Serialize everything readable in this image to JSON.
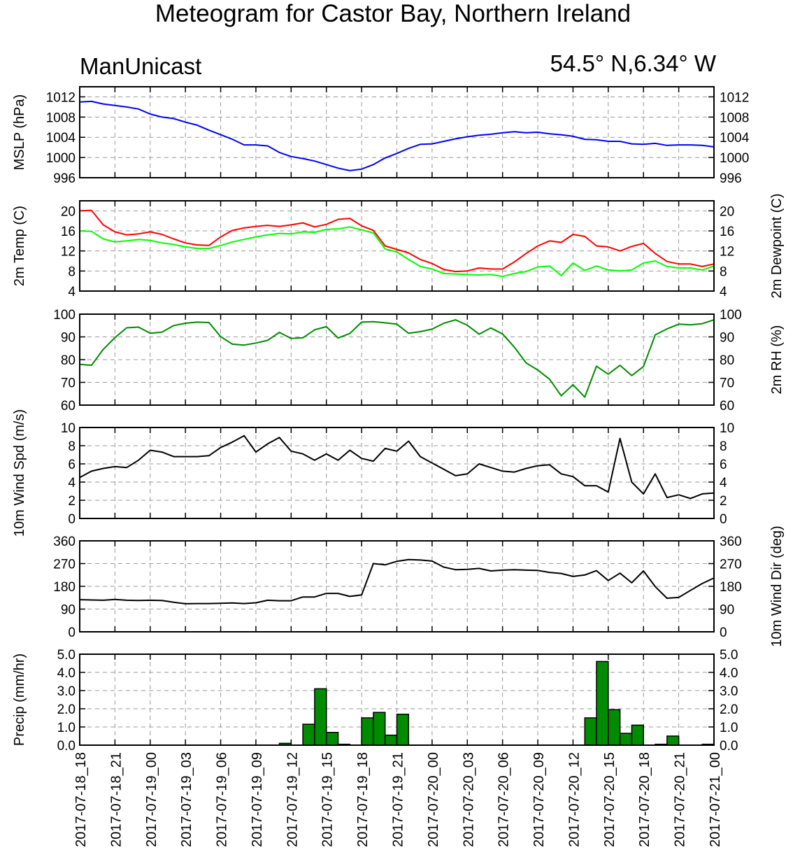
{
  "header": {
    "title": "Meteogram for Castor Bay, Northern Ireland",
    "left_string": "ManUnicast",
    "right_string": "54.5° N,6.34° W"
  },
  "x_axis": {
    "tick_labels": [
      "2017-07-18_18",
      "2017-07-18_21",
      "2017-07-19_00",
      "2017-07-19_03",
      "2017-07-19_06",
      "2017-07-19_09",
      "2017-07-19_12",
      "2017-07-19_15",
      "2017-07-19_18",
      "2017-07-19_21",
      "2017-07-20_00",
      "2017-07-20_03",
      "2017-07-20_06",
      "2017-07-20_09",
      "2017-07-20_12",
      "2017-07-20_15",
      "2017-07-20_18",
      "2017-07-20_21",
      "2017-07-21_00"
    ],
    "range_hours": [
      0,
      54
    ],
    "tick_every_hours": 3
  },
  "colors": {
    "mslp": "#0000ff",
    "temp": "#ff0000",
    "dewpoint": "#00ff00",
    "rh": "#008c00",
    "wind": "#000000",
    "precip_fill": "#008c00",
    "grid": "#999999"
  },
  "chart_data": [
    {
      "type": "line",
      "ylabel": "MSLP (hPa)",
      "yticks": [
        "996",
        "1000",
        "1004",
        "1008",
        "1012"
      ],
      "ylim": [
        996,
        1014
      ],
      "grid": true,
      "series": [
        {
          "color_key": "mslp",
          "x": [
            0,
            1,
            2,
            3,
            4,
            5,
            6,
            7,
            8,
            9,
            10,
            11,
            12,
            13,
            14,
            15,
            16,
            17,
            18,
            19,
            20,
            21,
            22,
            23,
            24,
            25,
            26,
            27,
            28,
            29,
            30,
            31,
            32,
            33,
            34,
            35,
            36,
            37,
            38,
            39,
            40,
            41,
            42,
            43,
            44,
            45,
            46,
            47,
            48,
            49,
            50,
            51,
            52,
            53,
            54
          ],
          "values": [
            1011.0,
            1011.1,
            1010.6,
            1010.3,
            1010.0,
            1009.6,
            1008.6,
            1008.0,
            1007.7,
            1007.0,
            1006.4,
            1005.4,
            1004.5,
            1003.6,
            1002.5,
            1002.5,
            1002.3,
            1001.0,
            1000.2,
            999.8,
            999.3,
            998.6,
            997.9,
            997.4,
            997.7,
            998.6,
            999.9,
            1000.8,
            1001.8,
            1002.6,
            1002.7,
            1003.2,
            1003.7,
            1004.1,
            1004.4,
            1004.6,
            1004.9,
            1005.1,
            1004.9,
            1005.0,
            1004.7,
            1004.5,
            1004.2,
            1003.6,
            1003.5,
            1003.2,
            1003.2,
            1002.7,
            1002.6,
            1002.8,
            1002.4,
            1002.5,
            1002.5,
            1002.4,
            1002.1
          ]
        }
      ]
    },
    {
      "type": "line",
      "ylabel": "2m Temp (C)",
      "ylabel_right": "2m Dewpoint (C)",
      "yticks": [
        "4",
        "8",
        "12",
        "16",
        "20"
      ],
      "ylim": [
        4,
        22
      ],
      "grid": true,
      "series": [
        {
          "color_key": "temp",
          "x": [
            0,
            1,
            2,
            3,
            4,
            5,
            6,
            7,
            8,
            9,
            10,
            11,
            12,
            13,
            14,
            15,
            16,
            17,
            18,
            19,
            20,
            21,
            22,
            23,
            24,
            25,
            26,
            27,
            28,
            29,
            30,
            31,
            32,
            33,
            34,
            35,
            36,
            37,
            38,
            39,
            40,
            41,
            42,
            43,
            44,
            45,
            46,
            47,
            48,
            49,
            50,
            51,
            52,
            53,
            54
          ],
          "values": [
            20.0,
            20.1,
            17.2,
            15.8,
            15.2,
            15.4,
            15.8,
            15.3,
            14.4,
            13.6,
            13.2,
            13.1,
            14.8,
            16.1,
            16.6,
            16.9,
            17.1,
            16.9,
            17.2,
            17.6,
            16.8,
            17.3,
            18.3,
            18.5,
            17.0,
            16.1,
            13.0,
            12.3,
            11.6,
            10.3,
            9.5,
            8.3,
            7.9,
            8.0,
            8.6,
            8.4,
            8.4,
            9.8,
            11.5,
            13.0,
            14.0,
            13.7,
            15.3,
            14.9,
            13.0,
            12.8,
            12.0,
            12.9,
            13.5,
            11.5,
            9.9,
            9.4,
            9.4,
            8.9,
            9.4
          ]
        },
        {
          "color_key": "dewpoint",
          "x": [
            0,
            1,
            2,
            3,
            4,
            5,
            6,
            7,
            8,
            9,
            10,
            11,
            12,
            13,
            14,
            15,
            16,
            17,
            18,
            19,
            20,
            21,
            22,
            23,
            24,
            25,
            26,
            27,
            28,
            29,
            30,
            31,
            32,
            33,
            34,
            35,
            36,
            37,
            38,
            39,
            40,
            41,
            42,
            43,
            44,
            45,
            46,
            47,
            48,
            49,
            50,
            51,
            52,
            53,
            54
          ],
          "values": [
            16.0,
            15.9,
            14.4,
            13.8,
            14.0,
            14.3,
            14.1,
            13.6,
            13.3,
            12.8,
            12.5,
            12.5,
            13.1,
            13.8,
            14.3,
            14.8,
            15.2,
            15.5,
            15.4,
            15.8,
            15.7,
            16.3,
            16.4,
            16.8,
            16.2,
            15.6,
            12.4,
            11.8,
            10.3,
            8.9,
            8.4,
            7.5,
            7.4,
            7.3,
            7.2,
            7.3,
            6.9,
            7.5,
            7.9,
            8.8,
            9.0,
            7.1,
            9.6,
            8.1,
            9.0,
            8.2,
            8.0,
            8.2,
            9.6,
            10.0,
            8.9,
            8.6,
            8.6,
            8.2,
            9.0
          ]
        }
      ]
    },
    {
      "type": "line",
      "ylabel_right": "2m RH (%)",
      "yticks": [
        "60",
        "70",
        "80",
        "90",
        "100"
      ],
      "ylim": [
        60,
        100
      ],
      "grid": true,
      "series": [
        {
          "color_key": "rh",
          "x": [
            0,
            1,
            2,
            3,
            4,
            5,
            6,
            7,
            8,
            9,
            10,
            11,
            12,
            13,
            14,
            15,
            16,
            17,
            18,
            19,
            20,
            21,
            22,
            23,
            24,
            25,
            26,
            27,
            28,
            29,
            30,
            31,
            32,
            33,
            34,
            35,
            36,
            37,
            38,
            39,
            40,
            41,
            42,
            43,
            44,
            45,
            46,
            47,
            48,
            49,
            50,
            51,
            52,
            53,
            54
          ],
          "values": [
            77.9,
            77.5,
            84.5,
            89.7,
            94.0,
            94.3,
            91.6,
            92.1,
            95.0,
            96.0,
            96.5,
            96.3,
            90.1,
            86.8,
            86.4,
            87.3,
            88.5,
            92.0,
            89.3,
            89.6,
            93.1,
            94.5,
            89.5,
            91.5,
            96.5,
            96.7,
            96.2,
            95.6,
            91.6,
            92.3,
            93.4,
            96.0,
            97.5,
            95.1,
            91.2,
            93.9,
            91.3,
            85.5,
            78.6,
            75.4,
            71.4,
            64.1,
            69.0,
            63.5,
            77.1,
            73.6,
            77.5,
            73.0,
            77.0,
            90.9,
            93.5,
            95.6,
            95.3,
            95.8,
            97.5
          ]
        }
      ]
    },
    {
      "type": "line",
      "ylabel": "10m Wind Spd (m/s)",
      "yticks": [
        "0",
        "2",
        "4",
        "6",
        "8",
        "10"
      ],
      "ylim": [
        0,
        10
      ],
      "grid": true,
      "series": [
        {
          "color_key": "wind",
          "x": [
            0,
            1,
            2,
            3,
            4,
            5,
            6,
            7,
            8,
            9,
            10,
            11,
            12,
            13,
            14,
            15,
            16,
            17,
            18,
            19,
            20,
            21,
            22,
            23,
            24,
            25,
            26,
            27,
            28,
            29,
            30,
            31,
            32,
            33,
            34,
            35,
            36,
            37,
            38,
            39,
            40,
            41,
            42,
            43,
            44,
            45,
            46,
            47,
            48,
            49,
            50,
            51,
            52,
            53,
            54
          ],
          "values": [
            4.5,
            5.2,
            5.5,
            5.7,
            5.6,
            6.4,
            7.5,
            7.3,
            6.8,
            6.8,
            6.8,
            6.9,
            7.8,
            8.4,
            9.1,
            7.3,
            8.2,
            8.9,
            7.4,
            7.1,
            6.4,
            7.1,
            6.4,
            7.5,
            6.6,
            6.3,
            7.7,
            7.4,
            8.5,
            6.8,
            6.1,
            5.4,
            4.7,
            4.9,
            6.0,
            5.6,
            5.2,
            5.1,
            5.5,
            5.8,
            5.9,
            4.9,
            4.6,
            3.6,
            3.6,
            2.9,
            8.8,
            4.0,
            2.7,
            4.9,
            2.3,
            2.6,
            2.2,
            2.7,
            2.8
          ]
        }
      ]
    },
    {
      "type": "line",
      "ylabel_right": "10m Wind Dir (deg)",
      "yticks": [
        "0",
        "90",
        "180",
        "270",
        "360"
      ],
      "ylim": [
        0,
        360
      ],
      "grid": true,
      "series": [
        {
          "color_key": "wind",
          "x": [
            0,
            1,
            2,
            3,
            4,
            5,
            6,
            7,
            8,
            9,
            10,
            11,
            12,
            13,
            14,
            15,
            16,
            17,
            18,
            19,
            20,
            21,
            22,
            23,
            24,
            25,
            26,
            27,
            28,
            29,
            30,
            31,
            32,
            33,
            34,
            35,
            36,
            37,
            38,
            39,
            40,
            41,
            42,
            43,
            44,
            45,
            46,
            47,
            48,
            49,
            50,
            51,
            52,
            53,
            54
          ],
          "values": [
            127,
            126,
            125,
            128,
            125,
            124,
            125,
            124,
            117,
            111,
            112,
            112,
            113,
            114,
            112,
            115,
            125,
            123,
            123,
            138,
            138,
            152,
            152,
            140,
            146,
            270,
            265,
            279,
            286,
            284,
            280,
            256,
            246,
            247,
            251,
            241,
            244,
            246,
            244,
            243,
            235,
            231,
            219,
            225,
            242,
            203,
            232,
            194,
            241,
            179,
            133,
            136,
            164,
            191,
            213
          ]
        }
      ]
    },
    {
      "type": "bar",
      "ylabel": "Precip (mm/hr)",
      "yticks": [
        "0.0",
        "1.0",
        "2.0",
        "3.0",
        "4.0",
        "5.0"
      ],
      "ylim": [
        0,
        5
      ],
      "grid": true,
      "bar_width_hours": 1,
      "x": [
        17,
        19,
        20,
        21,
        22,
        24,
        25,
        26,
        27,
        43,
        44,
        45,
        46,
        47,
        49,
        50,
        53
      ],
      "values": [
        0.1,
        1.15,
        3.1,
        0.7,
        0.05,
        1.5,
        1.8,
        0.55,
        1.7,
        1.5,
        4.6,
        1.95,
        0.65,
        1.1,
        0.05,
        0.5,
        0.05
      ]
    }
  ]
}
